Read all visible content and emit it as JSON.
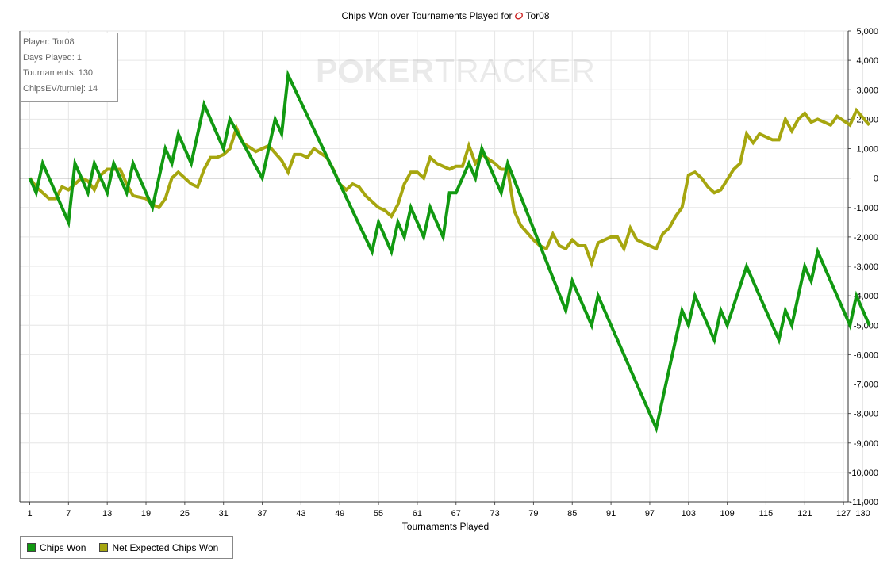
{
  "chart_data": {
    "type": "line",
    "title": "Chips Won over Tournaments Played for",
    "title_player": "Tor08",
    "title_icon": "poker-site-icon",
    "xlabel": "Tournaments Played",
    "ylabel": "",
    "xlim": [
      1,
      130
    ],
    "ylim": [
      -11000,
      5000
    ],
    "x_ticks": [
      1,
      7,
      13,
      19,
      25,
      31,
      37,
      43,
      49,
      55,
      61,
      67,
      73,
      79,
      85,
      91,
      97,
      103,
      109,
      115,
      121,
      127,
      130
    ],
    "y_ticks": [
      5000,
      4000,
      3000,
      2000,
      1000,
      0,
      -1000,
      -2000,
      -3000,
      -4000,
      -5000,
      -6000,
      -7000,
      -8000,
      -9000,
      -10000,
      -11000
    ],
    "y_tick_labels": [
      "5,000",
      "4,000",
      "3,000",
      "2,000",
      "1,000",
      "0",
      "-1,000",
      "-2,000",
      "-3,000",
      "-4,000",
      "-5,000",
      "-6,000",
      "-7,000",
      "-8,000",
      "-9,000",
      "-10,000",
      "-11,000"
    ],
    "y_axis_side": "right",
    "grid": true,
    "legend_position": "bottom-left",
    "series": [
      {
        "name": "Chips Won",
        "color": "#119911",
        "points": [
          [
            1,
            0
          ],
          [
            2,
            -500
          ],
          [
            3,
            500
          ],
          [
            7,
            -1500
          ],
          [
            8,
            500
          ],
          [
            10,
            -500
          ],
          [
            11,
            500
          ],
          [
            13,
            -500
          ],
          [
            14,
            500
          ],
          [
            16,
            -500
          ],
          [
            17,
            500
          ],
          [
            20,
            -1000
          ],
          [
            22,
            1000
          ],
          [
            23,
            500
          ],
          [
            24,
            1500
          ],
          [
            26,
            500
          ],
          [
            28,
            2500
          ],
          [
            31,
            1000
          ],
          [
            32,
            2000
          ],
          [
            37,
            0
          ],
          [
            39,
            2000
          ],
          [
            40,
            1500
          ],
          [
            41,
            3500
          ],
          [
            54,
            -2500
          ],
          [
            55,
            -1500
          ],
          [
            57,
            -2500
          ],
          [
            58,
            -1500
          ],
          [
            59,
            -2000
          ],
          [
            60,
            -1000
          ],
          [
            62,
            -2000
          ],
          [
            63,
            -1000
          ],
          [
            65,
            -2000
          ],
          [
            66,
            -500
          ],
          [
            67,
            -500
          ],
          [
            68,
            0
          ],
          [
            69,
            500
          ],
          [
            70,
            0
          ],
          [
            71,
            1000
          ],
          [
            74,
            -500
          ],
          [
            75,
            500
          ],
          [
            84,
            -4500
          ],
          [
            85,
            -3500
          ],
          [
            88,
            -5000
          ],
          [
            89,
            -4000
          ],
          [
            98,
            -8500
          ],
          [
            102,
            -4500
          ],
          [
            103,
            -5000
          ],
          [
            104,
            -4000
          ],
          [
            107,
            -5500
          ],
          [
            108,
            -4500
          ],
          [
            109,
            -5000
          ],
          [
            112,
            -3000
          ],
          [
            117,
            -5500
          ],
          [
            118,
            -4500
          ],
          [
            119,
            -5000
          ],
          [
            121,
            -3000
          ],
          [
            122,
            -3500
          ],
          [
            123,
            -2500
          ],
          [
            128,
            -5000
          ],
          [
            129,
            -4000
          ],
          [
            131,
            -5000
          ]
        ]
      },
      {
        "name": "Net Expected Chips Won",
        "color": "#a6a60f",
        "points": [
          [
            1,
            0
          ],
          [
            2,
            -300
          ],
          [
            4,
            -700
          ],
          [
            5,
            -700
          ],
          [
            6,
            -300
          ],
          [
            7,
            -400
          ],
          [
            8,
            -200
          ],
          [
            9,
            0
          ],
          [
            10,
            -100
          ],
          [
            11,
            -400
          ],
          [
            12,
            100
          ],
          [
            13,
            300
          ],
          [
            15,
            300
          ],
          [
            16,
            -200
          ],
          [
            17,
            -600
          ],
          [
            19,
            -700
          ],
          [
            20,
            -900
          ],
          [
            21,
            -1000
          ],
          [
            22,
            -700
          ],
          [
            23,
            0
          ],
          [
            24,
            200
          ],
          [
            26,
            -200
          ],
          [
            27,
            -300
          ],
          [
            28,
            300
          ],
          [
            29,
            700
          ],
          [
            30,
            700
          ],
          [
            31,
            800
          ],
          [
            32,
            1000
          ],
          [
            33,
            1700
          ],
          [
            34,
            1200
          ],
          [
            36,
            900
          ],
          [
            37,
            1000
          ],
          [
            38,
            1100
          ],
          [
            40,
            600
          ],
          [
            41,
            200
          ],
          [
            42,
            800
          ],
          [
            43,
            800
          ],
          [
            44,
            700
          ],
          [
            45,
            1000
          ],
          [
            47,
            700
          ],
          [
            48,
            300
          ],
          [
            49,
            -200
          ],
          [
            50,
            -400
          ],
          [
            51,
            -200
          ],
          [
            52,
            -300
          ],
          [
            53,
            -600
          ],
          [
            55,
            -1000
          ],
          [
            56,
            -1100
          ],
          [
            57,
            -1300
          ],
          [
            58,
            -900
          ],
          [
            59,
            -200
          ],
          [
            60,
            200
          ],
          [
            61,
            200
          ],
          [
            62,
            0
          ],
          [
            63,
            700
          ],
          [
            64,
            500
          ],
          [
            66,
            300
          ],
          [
            67,
            400
          ],
          [
            68,
            400
          ],
          [
            69,
            1100
          ],
          [
            70,
            500
          ],
          [
            71,
            800
          ],
          [
            73,
            500
          ],
          [
            74,
            300
          ],
          [
            75,
            300
          ],
          [
            76,
            -1100
          ],
          [
            77,
            -1600
          ],
          [
            79,
            -2100
          ],
          [
            80,
            -2300
          ],
          [
            81,
            -2400
          ],
          [
            82,
            -1900
          ],
          [
            83,
            -2300
          ],
          [
            84,
            -2400
          ],
          [
            85,
            -2100
          ],
          [
            86,
            -2300
          ],
          [
            87,
            -2300
          ],
          [
            88,
            -2900
          ],
          [
            89,
            -2200
          ],
          [
            91,
            -2000
          ],
          [
            92,
            -2000
          ],
          [
            93,
            -2400
          ],
          [
            94,
            -1700
          ],
          [
            95,
            -2100
          ],
          [
            96,
            -2200
          ],
          [
            97,
            -2300
          ],
          [
            98,
            -2400
          ],
          [
            99,
            -1900
          ],
          [
            100,
            -1700
          ],
          [
            101,
            -1300
          ],
          [
            102,
            -1000
          ],
          [
            103,
            100
          ],
          [
            104,
            200
          ],
          [
            105,
            0
          ],
          [
            106,
            -300
          ],
          [
            107,
            -500
          ],
          [
            108,
            -400
          ],
          [
            110,
            300
          ],
          [
            111,
            500
          ],
          [
            112,
            1500
          ],
          [
            113,
            1200
          ],
          [
            114,
            1500
          ],
          [
            115,
            1400
          ],
          [
            116,
            1300
          ],
          [
            117,
            1300
          ],
          [
            118,
            2000
          ],
          [
            119,
            1600
          ],
          [
            120,
            2000
          ],
          [
            121,
            2200
          ],
          [
            122,
            1900
          ],
          [
            123,
            2000
          ],
          [
            124,
            1900
          ],
          [
            125,
            1800
          ],
          [
            126,
            2100
          ],
          [
            128,
            1800
          ],
          [
            129,
            2300
          ],
          [
            131,
            1800
          ]
        ]
      }
    ]
  },
  "info_box": {
    "player": "Player: Tor08",
    "days_played": "Days Played: 1",
    "tournaments": "Tournaments: 130",
    "chips_ev": "ChipsEV/turniej: 14"
  },
  "watermark": {
    "part1": "P",
    "part2": "KER",
    "part3": "TRACKER"
  },
  "legend": {
    "items": [
      {
        "label": "Chips Won",
        "color": "#119911"
      },
      {
        "label": "Net Expected Chips Won",
        "color": "#a6a60f"
      }
    ]
  }
}
